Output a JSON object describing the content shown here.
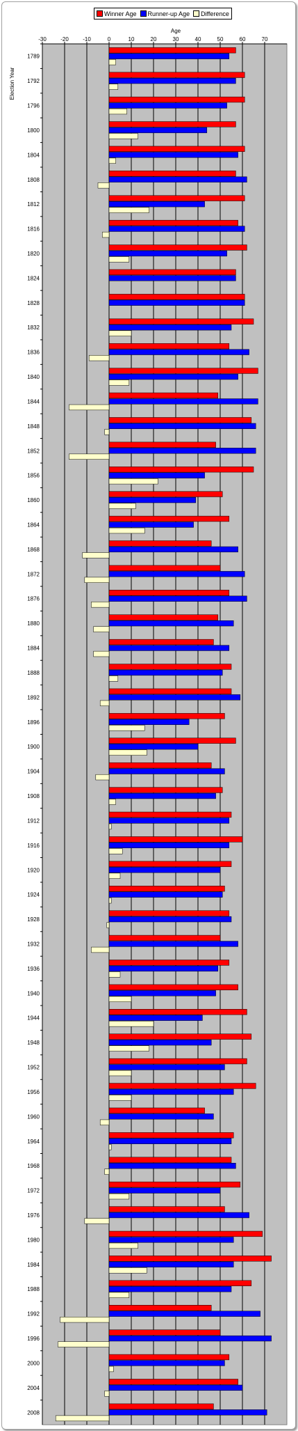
{
  "chart_data": {
    "type": "bar",
    "orientation": "horizontal",
    "xlabel": "Age",
    "ylabel": "Election Year",
    "xlim": [
      -30,
      80
    ],
    "xticks": [
      -30,
      -20,
      -10,
      0,
      10,
      20,
      30,
      40,
      50,
      60,
      70
    ],
    "grid": true,
    "legend_position": "top",
    "categories": [
      "1789",
      "1792",
      "1796",
      "1800",
      "1804",
      "1808",
      "1812",
      "1816",
      "1820",
      "1824",
      "1828",
      "1832",
      "1836",
      "1840",
      "1844",
      "1848",
      "1852",
      "1856",
      "1860",
      "1864",
      "1868",
      "1872",
      "1876",
      "1880",
      "1884",
      "1888",
      "1892",
      "1896",
      "1900",
      "1904",
      "1908",
      "1912",
      "1916",
      "1920",
      "1924",
      "1928",
      "1932",
      "1936",
      "1940",
      "1944",
      "1948",
      "1952",
      "1956",
      "1960",
      "1964",
      "1968",
      "1972",
      "1976",
      "1980",
      "1984",
      "1988",
      "1992",
      "1996",
      "2000",
      "2004",
      "2008"
    ],
    "series": [
      {
        "name": "Winner Age",
        "color": "#ff0000",
        "values": [
          57,
          61,
          61,
          57,
          61,
          57,
          61,
          58,
          62,
          57,
          61,
          65,
          54,
          67,
          49,
          64,
          48,
          65,
          51,
          54,
          46,
          50,
          54,
          49,
          47,
          55,
          55,
          52,
          57,
          46,
          51,
          55,
          60,
          55,
          52,
          54,
          50,
          54,
          58,
          62,
          64,
          62,
          66,
          43,
          56,
          55,
          59,
          52,
          69,
          73,
          64,
          46,
          50,
          54,
          58,
          47
        ]
      },
      {
        "name": "Runner-up Age",
        "color": "#0000ff",
        "values": [
          54,
          57,
          53,
          44,
          58,
          62,
          43,
          61,
          53,
          57,
          61,
          55,
          63,
          58,
          67,
          66,
          66,
          43,
          39,
          38,
          58,
          61,
          62,
          56,
          54,
          51,
          59,
          36,
          40,
          52,
          48,
          54,
          54,
          50,
          51,
          55,
          58,
          49,
          48,
          42,
          46,
          52,
          56,
          47,
          55,
          57,
          50,
          63,
          56,
          56,
          55,
          68,
          73,
          52,
          60,
          71
        ]
      },
      {
        "name": "Difference",
        "color": "#ffffcc",
        "values": [
          3,
          4,
          8,
          13,
          3,
          -5,
          18,
          -3,
          9,
          0,
          0,
          10,
          -9,
          9,
          -18,
          -2,
          -18,
          22,
          12,
          16,
          -12,
          -11,
          -8,
          -7,
          -7,
          4,
          -4,
          16,
          17,
          -6,
          3,
          1,
          6,
          5,
          1,
          -1,
          -8,
          5,
          10,
          20,
          18,
          10,
          10,
          -4,
          1,
          -2,
          9,
          -11,
          13,
          17,
          9,
          -22,
          -23,
          2,
          -2,
          -24
        ]
      }
    ]
  }
}
